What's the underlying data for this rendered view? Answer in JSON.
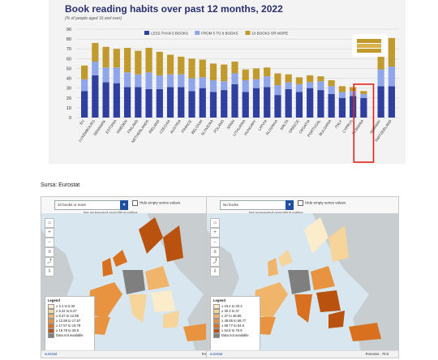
{
  "chart_data": {
    "type": "bar",
    "stacked": true,
    "title": "Book reading habits over past 12 months, 2022",
    "subtitle": "(% of people aged 16 and over)",
    "ylim": [
      0,
      90
    ],
    "yticks": [
      0,
      10,
      20,
      30,
      40,
      50,
      60,
      70,
      80,
      90
    ],
    "grid": true,
    "legend_position": "top",
    "categories": [
      "EU",
      "LUXEMBOURG",
      "DENMARK",
      "ESTONIA",
      "SWEDEN",
      "FINLAND",
      "NETHERLANDS",
      "IRELAND",
      "CZECHIA",
      "AUSTRIA",
      "FRANCE",
      "BELGIUM",
      "SLOVENIA",
      "POLAND",
      "SPAIN",
      "LITHUANIA",
      "HUNGARY",
      "LATVIA",
      "SLOVAKIA",
      "MALTA",
      "GREECE",
      "CROATIA",
      "PORTUGAL",
      "BULGARIA",
      "ITALY",
      "CYPRUS",
      "ROMANIA",
      "NORWAY",
      "SWITZERLAND"
    ],
    "series": [
      {
        "name": "LESS THAN 5 BOOKS",
        "color": "#2e3f9e",
        "values": [
          27,
          43,
          36,
          35,
          31,
          31,
          29,
          29,
          31,
          31,
          27,
          30,
          26,
          28,
          34,
          26,
          30,
          31,
          23,
          29,
          26,
          30,
          28,
          24,
          20,
          22,
          20,
          32,
          32
        ]
      },
      {
        "name": "FROM 5 TO 9 BOOKS",
        "color": "#8fa6ea",
        "values": [
          12,
          14,
          15,
          16,
          15,
          13,
          17,
          14,
          13,
          13,
          13,
          11,
          12,
          9,
          11,
          12,
          9,
          11,
          10,
          7,
          8,
          6,
          9,
          8,
          6,
          5,
          4,
          17,
          20
        ]
      },
      {
        "name": "10 BOOKS OR MORE",
        "color": "#c09a2c",
        "values": [
          14,
          19,
          21,
          19,
          25,
          24,
          25,
          24,
          20,
          18,
          20,
          18,
          17,
          17,
          12,
          11,
          11,
          9,
          12,
          8,
          7,
          7,
          5,
          6,
          6,
          4,
          3,
          22,
          29
        ]
      }
    ],
    "highlight": "ROMANIA"
  },
  "source_label": "Sursa: Eurostat",
  "maps": [
    {
      "select_value": "10 books or more",
      "hide_label": "Hide empty series values",
      "not_represented": "Not represented geopolitical entities",
      "legend_title": "Legend",
      "legend_items": [
        {
          "label": "≥ 3.1 to 5.32",
          "color": "#fbeccc"
        },
        {
          "label": "≥ 5.32 to 8.47",
          "color": "#f6d49a"
        },
        {
          "label": "≥ 8.47 to 12.88",
          "color": "#f0b56a"
        },
        {
          "label": "≥ 12.88 to 17.57",
          "color": "#e8933f"
        },
        {
          "label": "≥ 17.57 to 19.78",
          "color": "#d8701f"
        },
        {
          "label": "≥ 19.78 to 28.8",
          "color": "#b8520e"
        },
        {
          "label": "Data not available",
          "color": "#7f7f7f"
        }
      ],
      "foot_left": "eurostat",
      "foot_right": "Romania : 3.1"
    },
    {
      "select_value": "No books",
      "hide_label": "Hide empty series values",
      "not_represented": "Not represented geopolitical entities",
      "legend_title": "Legend",
      "legend_items": [
        {
          "label": "≥ 19.4 to 30.3",
          "color": "#fbeccc"
        },
        {
          "label": "≥ 30.3 to 37",
          "color": "#f6d49a"
        },
        {
          "label": "≥ 37 to 48.85",
          "color": "#f0b56a"
        },
        {
          "label": "≥ 48.85 to 56.77",
          "color": "#e8933f"
        },
        {
          "label": "≥ 56.77 to 64.8",
          "color": "#d8701f"
        },
        {
          "label": "≥ 64.8 to 70.8",
          "color": "#b8520e"
        },
        {
          "label": "Data not available",
          "color": "#7f7f7f"
        }
      ],
      "foot_left": "eurostat",
      "foot_right": "Romania : 70.8"
    }
  ]
}
